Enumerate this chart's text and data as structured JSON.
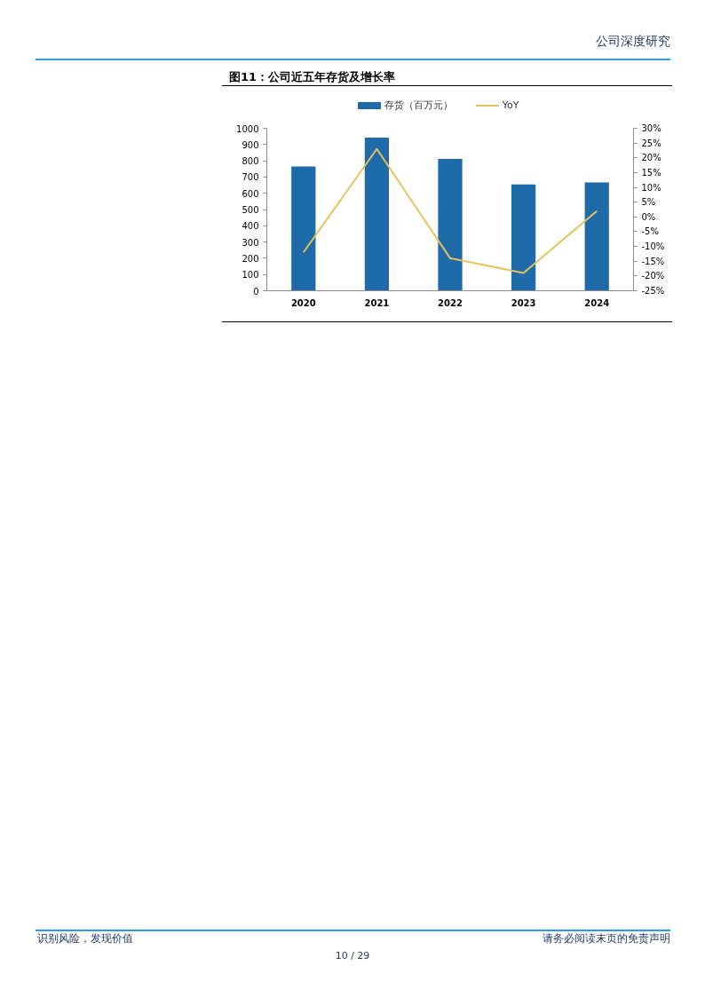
{
  "chart_data": {
    "type": "bar",
    "title": "图11：公司近五年存货及增长率",
    "categories": [
      "2020",
      "2021",
      "2022",
      "2023",
      "2024"
    ],
    "series": [
      {
        "name": "存货（百万元）",
        "color": "#1f6aa8",
        "values": [
          765,
          942,
          811,
          655,
          667
        ]
      },
      {
        "name": "YoY",
        "type": "line",
        "axis": "y2",
        "color": "#e6c35a",
        "values": [
          -12,
          23,
          -14,
          -19,
          2
        ]
      }
    ],
    "ylim": [
      0,
      1000
    ],
    "yticks": [
      0,
      100,
      200,
      300,
      400,
      500,
      600,
      700,
      800,
      900,
      1000
    ],
    "y2lim": [
      -25,
      30
    ],
    "y2ticks": [
      {
        "value": -25,
        "label": "-25%"
      },
      {
        "value": -20,
        "label": "-20%"
      },
      {
        "value": -15,
        "label": "-15%"
      },
      {
        "value": -10,
        "label": "-10%"
      },
      {
        "value": -5,
        "label": "-5%"
      },
      {
        "value": 0,
        "label": "0%"
      },
      {
        "value": 5,
        "label": "5%"
      },
      {
        "value": 10,
        "label": "10%"
      },
      {
        "value": 15,
        "label": "15%"
      },
      {
        "value": 20,
        "label": "20%"
      },
      {
        "value": 25,
        "label": "25%"
      },
      {
        "value": 30,
        "label": "30%"
      }
    ],
    "legend": "top",
    "annotations": [
      "公司深度研究",
      "识别风险，发现价值",
      "请务必阅读末页的免责声明",
      "10 / 29"
    ]
  }
}
